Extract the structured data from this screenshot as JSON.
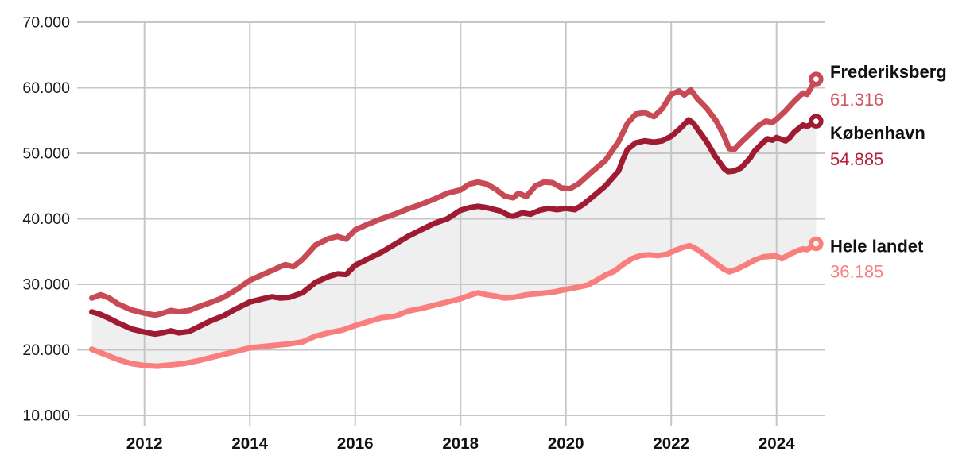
{
  "chart_data": {
    "type": "line",
    "title": "",
    "grid": true,
    "grid_color": "#c6c6c6",
    "band_fill_color": "#efefef",
    "axis_text_color": "#1a1a1a",
    "label_text_color": "#111111",
    "legend_position": "right-end-labels",
    "y_range": [
      10000,
      70000
    ],
    "x_range": [
      2011.0,
      2024.75
    ],
    "y_axis": {
      "ticks": [
        {
          "value": 70000,
          "label": "70.000"
        },
        {
          "value": 60000,
          "label": "60.000"
        },
        {
          "value": 50000,
          "label": "50.000"
        },
        {
          "value": 40000,
          "label": "40.000"
        },
        {
          "value": 30000,
          "label": "30.000"
        },
        {
          "value": 20000,
          "label": "20.000"
        },
        {
          "value": 10000,
          "label": "10.000"
        }
      ]
    },
    "x_axis": {
      "ticks": [
        {
          "value": 2012,
          "label": "2012"
        },
        {
          "value": 2014,
          "label": "2014"
        },
        {
          "value": 2016,
          "label": "2016"
        },
        {
          "value": 2018,
          "label": "2018"
        },
        {
          "value": 2020,
          "label": "2020"
        },
        {
          "value": 2022,
          "label": "2022"
        },
        {
          "value": 2024,
          "label": "2024"
        }
      ]
    },
    "band": {
      "upper": "København",
      "lower": "Hele landet"
    },
    "series": [
      {
        "name": "Frederiksberg",
        "slug": "frederiksberg",
        "end_label": "61.316",
        "end_value": 61316,
        "color": "#c84a54",
        "value_color": "#d05560",
        "name_dy": -9,
        "value_dy": 26,
        "points": [
          [
            2011.0,
            27900
          ],
          [
            2011.17,
            28400
          ],
          [
            2011.33,
            27900
          ],
          [
            2011.5,
            27000
          ],
          [
            2011.75,
            26100
          ],
          [
            2012.0,
            25600
          ],
          [
            2012.2,
            25300
          ],
          [
            2012.35,
            25600
          ],
          [
            2012.5,
            26000
          ],
          [
            2012.65,
            25800
          ],
          [
            2012.85,
            26000
          ],
          [
            2013.0,
            26500
          ],
          [
            2013.25,
            27200
          ],
          [
            2013.5,
            28000
          ],
          [
            2013.75,
            29200
          ],
          [
            2014.0,
            30600
          ],
          [
            2014.25,
            31500
          ],
          [
            2014.5,
            32400
          ],
          [
            2014.67,
            33000
          ],
          [
            2014.83,
            32700
          ],
          [
            2015.0,
            33800
          ],
          [
            2015.25,
            36000
          ],
          [
            2015.5,
            37000
          ],
          [
            2015.67,
            37300
          ],
          [
            2015.83,
            36900
          ],
          [
            2016.0,
            38300
          ],
          [
            2016.25,
            39200
          ],
          [
            2016.5,
            40000
          ],
          [
            2016.75,
            40700
          ],
          [
            2017.0,
            41500
          ],
          [
            2017.25,
            42200
          ],
          [
            2017.5,
            43000
          ],
          [
            2017.75,
            43900
          ],
          [
            2018.0,
            44400
          ],
          [
            2018.17,
            45300
          ],
          [
            2018.33,
            45600
          ],
          [
            2018.5,
            45300
          ],
          [
            2018.67,
            44500
          ],
          [
            2018.83,
            43500
          ],
          [
            2019.0,
            43200
          ],
          [
            2019.1,
            43900
          ],
          [
            2019.25,
            43400
          ],
          [
            2019.42,
            45000
          ],
          [
            2019.58,
            45600
          ],
          [
            2019.75,
            45500
          ],
          [
            2019.92,
            44700
          ],
          [
            2020.08,
            44600
          ],
          [
            2020.25,
            45400
          ],
          [
            2020.5,
            47200
          ],
          [
            2020.75,
            48900
          ],
          [
            2021.0,
            51800
          ],
          [
            2021.17,
            54600
          ],
          [
            2021.33,
            56000
          ],
          [
            2021.5,
            56200
          ],
          [
            2021.67,
            55600
          ],
          [
            2021.83,
            56800
          ],
          [
            2022.0,
            59000
          ],
          [
            2022.15,
            59500
          ],
          [
            2022.25,
            58900
          ],
          [
            2022.37,
            59700
          ],
          [
            2022.5,
            58300
          ],
          [
            2022.67,
            56900
          ],
          [
            2022.85,
            55000
          ],
          [
            2023.0,
            52700
          ],
          [
            2023.1,
            50700
          ],
          [
            2023.2,
            50600
          ],
          [
            2023.33,
            51700
          ],
          [
            2023.5,
            53000
          ],
          [
            2023.67,
            54300
          ],
          [
            2023.8,
            54900
          ],
          [
            2023.92,
            54700
          ],
          [
            2024.0,
            55200
          ],
          [
            2024.17,
            56500
          ],
          [
            2024.33,
            57900
          ],
          [
            2024.5,
            59200
          ],
          [
            2024.58,
            59000
          ],
          [
            2024.75,
            61316
          ]
        ]
      },
      {
        "name": "København",
        "slug": "kobenhavn",
        "end_label": "54.885",
        "end_value": 54885,
        "color": "#9e1b32",
        "value_color": "#b51f38",
        "name_dy": 15,
        "value_dy": 48,
        "points": [
          [
            2011.0,
            25800
          ],
          [
            2011.17,
            25400
          ],
          [
            2011.33,
            24800
          ],
          [
            2011.5,
            24100
          ],
          [
            2011.75,
            23200
          ],
          [
            2012.0,
            22700
          ],
          [
            2012.2,
            22400
          ],
          [
            2012.35,
            22600
          ],
          [
            2012.5,
            22900
          ],
          [
            2012.65,
            22600
          ],
          [
            2012.85,
            22800
          ],
          [
            2013.0,
            23400
          ],
          [
            2013.25,
            24400
          ],
          [
            2013.5,
            25200
          ],
          [
            2013.75,
            26300
          ],
          [
            2014.0,
            27300
          ],
          [
            2014.25,
            27800
          ],
          [
            2014.42,
            28100
          ],
          [
            2014.58,
            27900
          ],
          [
            2014.75,
            28000
          ],
          [
            2015.0,
            28700
          ],
          [
            2015.25,
            30300
          ],
          [
            2015.5,
            31200
          ],
          [
            2015.67,
            31600
          ],
          [
            2015.83,
            31500
          ],
          [
            2016.0,
            32900
          ],
          [
            2016.25,
            33900
          ],
          [
            2016.5,
            34900
          ],
          [
            2016.75,
            36100
          ],
          [
            2017.0,
            37300
          ],
          [
            2017.25,
            38300
          ],
          [
            2017.5,
            39300
          ],
          [
            2017.75,
            40000
          ],
          [
            2018.0,
            41300
          ],
          [
            2018.17,
            41700
          ],
          [
            2018.33,
            41900
          ],
          [
            2018.5,
            41700
          ],
          [
            2018.75,
            41200
          ],
          [
            2018.92,
            40500
          ],
          [
            2019.0,
            40400
          ],
          [
            2019.17,
            40900
          ],
          [
            2019.33,
            40700
          ],
          [
            2019.5,
            41300
          ],
          [
            2019.67,
            41600
          ],
          [
            2019.83,
            41400
          ],
          [
            2020.0,
            41600
          ],
          [
            2020.17,
            41400
          ],
          [
            2020.33,
            42200
          ],
          [
            2020.5,
            43300
          ],
          [
            2020.75,
            45000
          ],
          [
            2021.0,
            47300
          ],
          [
            2021.08,
            49000
          ],
          [
            2021.17,
            50600
          ],
          [
            2021.33,
            51600
          ],
          [
            2021.5,
            51900
          ],
          [
            2021.67,
            51700
          ],
          [
            2021.83,
            51900
          ],
          [
            2022.0,
            52600
          ],
          [
            2022.17,
            53800
          ],
          [
            2022.33,
            55100
          ],
          [
            2022.42,
            54600
          ],
          [
            2022.5,
            53700
          ],
          [
            2022.67,
            51800
          ],
          [
            2022.83,
            49600
          ],
          [
            2023.0,
            47700
          ],
          [
            2023.08,
            47200
          ],
          [
            2023.2,
            47300
          ],
          [
            2023.33,
            47800
          ],
          [
            2023.5,
            49300
          ],
          [
            2023.58,
            50300
          ],
          [
            2023.75,
            51700
          ],
          [
            2023.83,
            52200
          ],
          [
            2023.92,
            52000
          ],
          [
            2024.0,
            52400
          ],
          [
            2024.1,
            52100
          ],
          [
            2024.17,
            51900
          ],
          [
            2024.25,
            52400
          ],
          [
            2024.33,
            53200
          ],
          [
            2024.42,
            53800
          ],
          [
            2024.5,
            54300
          ],
          [
            2024.58,
            54100
          ],
          [
            2024.75,
            54885
          ]
        ]
      },
      {
        "name": "Hele landet",
        "slug": "hele-landet",
        "end_label": "36.185",
        "end_value": 36185,
        "color": "#f97f7f",
        "value_color": "#f97f7f",
        "name_dy": 3,
        "value_dy": 35,
        "points": [
          [
            2011.0,
            20100
          ],
          [
            2011.25,
            19300
          ],
          [
            2011.5,
            18500
          ],
          [
            2011.75,
            17900
          ],
          [
            2012.0,
            17600
          ],
          [
            2012.25,
            17500
          ],
          [
            2012.5,
            17700
          ],
          [
            2012.75,
            17900
          ],
          [
            2013.0,
            18300
          ],
          [
            2013.25,
            18800
          ],
          [
            2013.5,
            19300
          ],
          [
            2013.75,
            19800
          ],
          [
            2014.0,
            20300
          ],
          [
            2014.25,
            20500
          ],
          [
            2014.5,
            20700
          ],
          [
            2014.75,
            20900
          ],
          [
            2015.0,
            21200
          ],
          [
            2015.25,
            22100
          ],
          [
            2015.5,
            22600
          ],
          [
            2015.75,
            23000
          ],
          [
            2016.0,
            23700
          ],
          [
            2016.25,
            24300
          ],
          [
            2016.5,
            24900
          ],
          [
            2016.75,
            25100
          ],
          [
            2017.0,
            25900
          ],
          [
            2017.25,
            26300
          ],
          [
            2017.5,
            26800
          ],
          [
            2017.75,
            27300
          ],
          [
            2018.0,
            27800
          ],
          [
            2018.17,
            28300
          ],
          [
            2018.33,
            28700
          ],
          [
            2018.5,
            28400
          ],
          [
            2018.67,
            28200
          ],
          [
            2018.83,
            27900
          ],
          [
            2019.0,
            28000
          ],
          [
            2019.25,
            28400
          ],
          [
            2019.5,
            28600
          ],
          [
            2019.75,
            28800
          ],
          [
            2020.0,
            29200
          ],
          [
            2020.25,
            29600
          ],
          [
            2020.42,
            29900
          ],
          [
            2020.58,
            30600
          ],
          [
            2020.75,
            31400
          ],
          [
            2020.92,
            32000
          ],
          [
            2021.08,
            33000
          ],
          [
            2021.25,
            33900
          ],
          [
            2021.42,
            34400
          ],
          [
            2021.58,
            34500
          ],
          [
            2021.75,
            34400
          ],
          [
            2021.92,
            34600
          ],
          [
            2022.08,
            35200
          ],
          [
            2022.25,
            35700
          ],
          [
            2022.35,
            35900
          ],
          [
            2022.5,
            35300
          ],
          [
            2022.67,
            34300
          ],
          [
            2022.83,
            33300
          ],
          [
            2023.0,
            32300
          ],
          [
            2023.1,
            31900
          ],
          [
            2023.25,
            32300
          ],
          [
            2023.42,
            33000
          ],
          [
            2023.58,
            33700
          ],
          [
            2023.75,
            34200
          ],
          [
            2023.92,
            34300
          ],
          [
            2024.0,
            34300
          ],
          [
            2024.1,
            33900
          ],
          [
            2024.25,
            34600
          ],
          [
            2024.42,
            35200
          ],
          [
            2024.5,
            35400
          ],
          [
            2024.58,
            35300
          ],
          [
            2024.75,
            36185
          ]
        ]
      }
    ]
  }
}
